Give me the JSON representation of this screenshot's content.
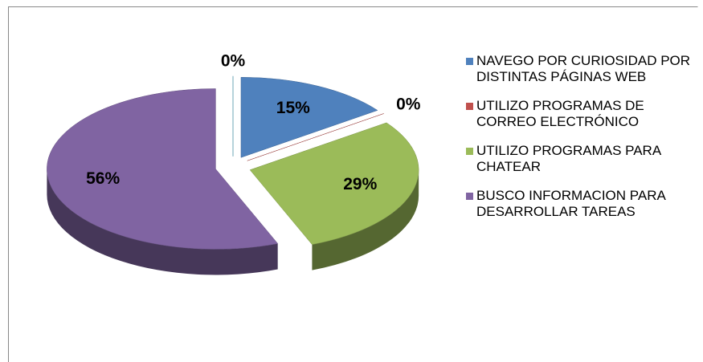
{
  "chart_data": {
    "type": "pie",
    "categories": [
      "NAVEGO POR CURIOSIDAD POR DISTINTAS PÁGINAS WEB",
      "UTILIZO PROGRAMAS DE CORREO ELECTRÓNICO",
      "UTILIZO PROGRAMAS PARA CHATEAR",
      "BUSCO INFORMACION PARA DESARROLLAR TAREAS",
      null
    ],
    "values": [
      15,
      0,
      29,
      56,
      0
    ],
    "value_labels": [
      "15%",
      "0%",
      "29%",
      "56%",
      "0%"
    ],
    "colors": [
      "#4f81bd",
      "#c0504d",
      "#9bbb59",
      "#8064a2",
      "#4bacc6"
    ],
    "legend": "right"
  }
}
